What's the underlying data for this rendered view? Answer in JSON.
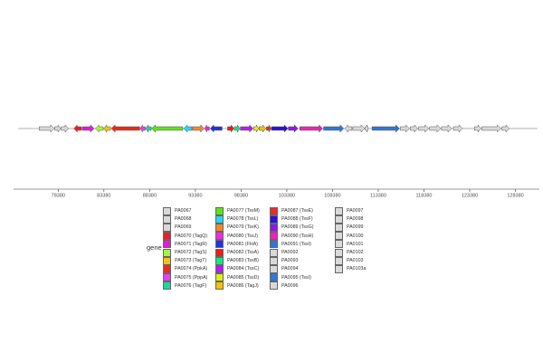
{
  "chart_data": {
    "type": "gene-arrow-map",
    "xlim": [
      73500,
      131000
    ],
    "x_ticks": [
      "78380",
      "83380",
      "88380",
      "93380",
      "98380",
      "103380",
      "108380",
      "113380",
      "118380",
      "123380",
      "128380"
    ],
    "x_tick_values": [
      78380,
      83380,
      88380,
      93380,
      98380,
      103380,
      108380,
      113380,
      118380,
      123380,
      128380
    ],
    "track_range": [
      74000,
      130800
    ],
    "legend_title": "gene",
    "grey": "#d9d9d9",
    "genes": [
      {
        "label": "PA0067",
        "start": 76300,
        "end": 77950,
        "strand": 1,
        "color": "#d9d9d9"
      },
      {
        "label": "PA0068",
        "start": 78000,
        "end": 78650,
        "strand": 1,
        "color": "#d9d9d9"
      },
      {
        "label": "PA0069",
        "start": 78700,
        "end": 79500,
        "strand": 1,
        "color": "#d9d9d9"
      },
      {
        "label": "PA0070 (TagQ)",
        "start": 80100,
        "end": 80900,
        "strand": -1,
        "color": "#e8212b"
      },
      {
        "label": "PA0071 (TagR)",
        "start": 81000,
        "end": 82300,
        "strand": 1,
        "color": "#e21cd7"
      },
      {
        "label": "PA0072 (TagS)",
        "start": 82450,
        "end": 83300,
        "strand": -1,
        "color": "#a6f53e"
      },
      {
        "label": "PA0073 (TagT)",
        "start": 83350,
        "end": 84100,
        "strand": -1,
        "color": "#f0c414"
      },
      {
        "label": "PA0074 (PpkA)",
        "start": 84200,
        "end": 87300,
        "strand": -1,
        "color": "#ed2a1a"
      },
      {
        "label": "PA0075 (PppA)",
        "start": 87350,
        "end": 87900,
        "strand": -1,
        "color": "#e83df0"
      },
      {
        "label": "PA0076 (TagF)",
        "start": 87950,
        "end": 88550,
        "strand": -1,
        "color": "#1fd6a0"
      },
      {
        "label": "PA0077 (TssM)",
        "start": 88600,
        "end": 92000,
        "strand": -1,
        "color": "#5fe318"
      },
      {
        "label": "PA0078 (TssL)",
        "start": 92100,
        "end": 93000,
        "strand": -1,
        "color": "#29d6f0"
      },
      {
        "label": "PA0079 (TssK)",
        "start": 93050,
        "end": 94350,
        "strand": 1,
        "color": "#f0892a"
      },
      {
        "label": "PA0080 (TssJ)",
        "start": 94400,
        "end": 94900,
        "strand": -1,
        "color": "#f02ae0"
      },
      {
        "label": "PA0081 (FHA)",
        "start": 95000,
        "end": 96300,
        "strand": -1,
        "color": "#2233e0"
      },
      {
        "label": "PA0082 (TssA)",
        "start": 96900,
        "end": 97600,
        "strand": 1,
        "color": "#ed1c1c"
      },
      {
        "label": "PA0083 (TssB)",
        "start": 97650,
        "end": 98250,
        "strand": 1,
        "color": "#1ae67a"
      },
      {
        "label": "PA0084 (TssC)",
        "start": 98300,
        "end": 99700,
        "strand": 1,
        "color": "#b51ef0"
      },
      {
        "label": "PA0085 (TssD)",
        "start": 99750,
        "end": 100300,
        "strand": 1,
        "color": "#dcf018"
      },
      {
        "label": "PA0086 (TagJ)",
        "start": 100350,
        "end": 101100,
        "strand": 1,
        "color": "#f2c010"
      },
      {
        "label": "PA0087 (TssE)",
        "start": 101150,
        "end": 101650,
        "strand": 1,
        "color": "#ed2a2a"
      },
      {
        "label": "PA0088 (TssF)",
        "start": 101700,
        "end": 103500,
        "strand": 1,
        "color": "#2a13d6"
      },
      {
        "label": "PA0089 (TssG)",
        "start": 103550,
        "end": 104600,
        "strand": 1,
        "color": "#8a1ae6"
      },
      {
        "label": "PA0090 (TssH)",
        "start": 104800,
        "end": 107300,
        "strand": 1,
        "color": "#f021b8"
      },
      {
        "label": "PA0091 (TssI)",
        "start": 107400,
        "end": 109600,
        "strand": 1,
        "color": "#2f78d8"
      },
      {
        "label": "PA0092",
        "start": 109700,
        "end": 110500,
        "strand": -1,
        "color": "#d9d9d9"
      },
      {
        "label": "PA0093",
        "start": 110600,
        "end": 111900,
        "strand": 1,
        "color": "#d9d9d9"
      },
      {
        "label": "PA0094",
        "start": 111950,
        "end": 112300,
        "strand": 1,
        "color": "#d9d9d9"
      },
      {
        "label": "PA0095 (TssI)",
        "start": 112700,
        "end": 115700,
        "strand": 1,
        "color": "#2f78d8"
      },
      {
        "label": "PA0096",
        "start": 115800,
        "end": 116800,
        "strand": 1,
        "color": "#d9d9d9"
      },
      {
        "label": "PA0097",
        "start": 116900,
        "end": 117700,
        "strand": 1,
        "color": "#d9d9d9"
      },
      {
        "label": "PA0098",
        "start": 117800,
        "end": 118900,
        "strand": 1,
        "color": "#d9d9d9"
      },
      {
        "label": "PA0099",
        "start": 119000,
        "end": 120200,
        "strand": 1,
        "color": "#d9d9d9"
      },
      {
        "label": "PA0100",
        "start": 120300,
        "end": 121400,
        "strand": 1,
        "color": "#d9d9d9"
      },
      {
        "label": "PA0101",
        "start": 121600,
        "end": 122600,
        "strand": 1,
        "color": "#d9d9d9"
      },
      {
        "label": "PA0102",
        "start": 123900,
        "end": 124600,
        "strand": 1,
        "color": "#d9d9d9"
      },
      {
        "label": "PA0103",
        "start": 124700,
        "end": 126800,
        "strand": 1,
        "color": "#d9d9d9"
      },
      {
        "label": "PA0103a",
        "start": 126900,
        "end": 127700,
        "strand": 1,
        "color": "#d9d9d9"
      }
    ]
  }
}
